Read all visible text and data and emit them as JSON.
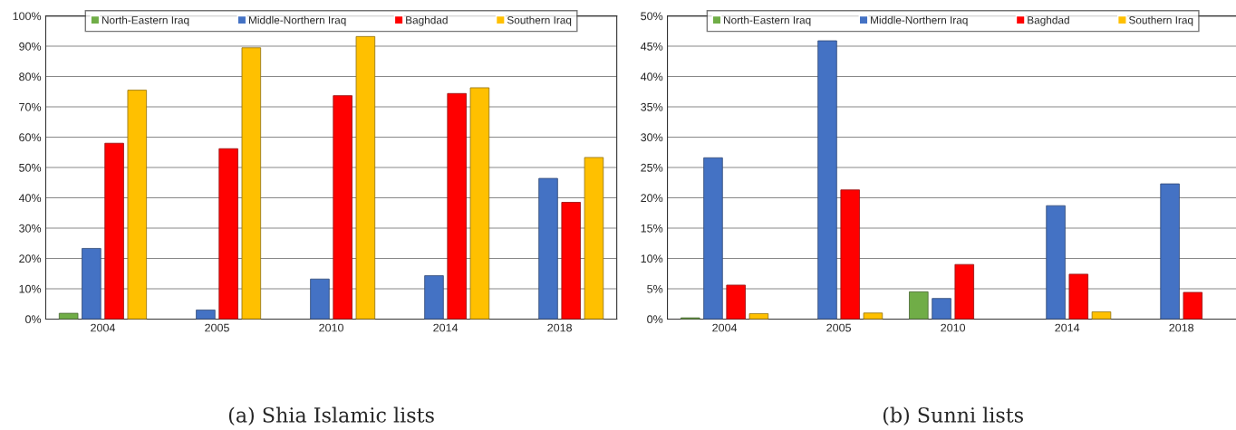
{
  "chart_data": [
    {
      "type": "bar",
      "title": "(a) Shia Islamic lists",
      "categories": [
        "2004",
        "2005",
        "2010",
        "2014",
        "2018"
      ],
      "series": [
        {
          "name": "North-Eastern Iraq",
          "color": "#70ad47",
          "values": [
            1.9,
            null,
            null,
            null,
            null
          ]
        },
        {
          "name": "Middle-Northern Iraq",
          "color": "#4472c4",
          "values": [
            23.3,
            3.0,
            13.2,
            14.3,
            46.4
          ]
        },
        {
          "name": "Baghdad",
          "color": "#ff0000",
          "values": [
            58.0,
            56.2,
            73.7,
            74.4,
            38.5
          ]
        },
        {
          "name": "Southern Iraq",
          "color": "#ffc000",
          "values": [
            75.5,
            89.5,
            93.2,
            76.3,
            53.3
          ]
        }
      ],
      "ylim": [
        0,
        100
      ],
      "yticks": [
        {
          "value": 0,
          "label": "0%"
        },
        {
          "value": 10,
          "label": "10%"
        },
        {
          "value": 20,
          "label": "20%"
        },
        {
          "value": 30,
          "label": "30%"
        },
        {
          "value": 40,
          "label": "40%"
        },
        {
          "value": 50,
          "label": "50%"
        },
        {
          "value": 60,
          "label": "60%"
        },
        {
          "value": 70,
          "label": "70%"
        },
        {
          "value": 80,
          "label": "80%"
        },
        {
          "value": 90,
          "label": "90%"
        },
        {
          "value": 100,
          "label": "100%"
        }
      ],
      "grid": "y",
      "legend": "top"
    },
    {
      "type": "bar",
      "title": "(b) Sunni lists",
      "categories": [
        "2004",
        "2005",
        "2010",
        "2014",
        "2018"
      ],
      "series": [
        {
          "name": "North-Eastern Iraq",
          "color": "#70ad47",
          "values": [
            0.2,
            null,
            4.5,
            null,
            null
          ]
        },
        {
          "name": "Middle-Northern Iraq",
          "color": "#4472c4",
          "values": [
            26.6,
            45.9,
            3.4,
            18.7,
            22.3
          ]
        },
        {
          "name": "Baghdad",
          "color": "#ff0000",
          "values": [
            5.6,
            21.3,
            9.0,
            7.4,
            4.4
          ]
        },
        {
          "name": "Southern Iraq",
          "color": "#ffc000",
          "values": [
            0.9,
            1.0,
            null,
            1.2,
            null
          ]
        }
      ],
      "ylim": [
        0,
        50
      ],
      "yticks": [
        {
          "value": 0,
          "label": "0%"
        },
        {
          "value": 5,
          "label": "5%"
        },
        {
          "value": 10,
          "label": "10%"
        },
        {
          "value": 15,
          "label": "15%"
        },
        {
          "value": 20,
          "label": "20%"
        },
        {
          "value": 25,
          "label": "25%"
        },
        {
          "value": 30,
          "label": "30%"
        },
        {
          "value": 35,
          "label": "35%"
        },
        {
          "value": 40,
          "label": "40%"
        },
        {
          "value": 45,
          "label": "45%"
        },
        {
          "value": 50,
          "label": "50%"
        }
      ],
      "grid": "y",
      "legend": "top"
    }
  ]
}
